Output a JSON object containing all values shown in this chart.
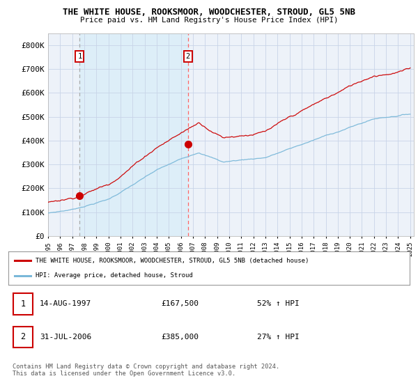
{
  "title": "THE WHITE HOUSE, ROOKSMOOR, WOODCHESTER, STROUD, GL5 5NB",
  "subtitle": "Price paid vs. HM Land Registry's House Price Index (HPI)",
  "ylim": [
    0,
    850000
  ],
  "yticks": [
    0,
    100000,
    200000,
    300000,
    400000,
    500000,
    600000,
    700000,
    800000
  ],
  "ytick_labels": [
    "£0",
    "£100K",
    "£200K",
    "£300K",
    "£400K",
    "£500K",
    "£600K",
    "£700K",
    "£800K"
  ],
  "p1_year": 1997.62,
  "p1_price": 167500,
  "p2_year": 2006.58,
  "p2_price": 385000,
  "legend_line1": "THE WHITE HOUSE, ROOKSMOOR, WOODCHESTER, STROUD, GL5 5NB (detached house)",
  "legend_line2": "HPI: Average price, detached house, Stroud",
  "row1_date": "14-AUG-1997",
  "row1_price": "£167,500",
  "row1_pct": "52% ↑ HPI",
  "row2_date": "31-JUL-2006",
  "row2_price": "£385,000",
  "row2_pct": "27% ↑ HPI",
  "footer": "Contains HM Land Registry data © Crown copyright and database right 2024.\nThis data is licensed under the Open Government Licence v3.0.",
  "hpi_color": "#7ab8d9",
  "price_color": "#cc0000",
  "vline1_color": "#aaaaaa",
  "vline2_color": "#ff6666",
  "shade_color": "#ddeef8",
  "bg_color": "#edf2f9",
  "grid_color": "#c8d4e8"
}
